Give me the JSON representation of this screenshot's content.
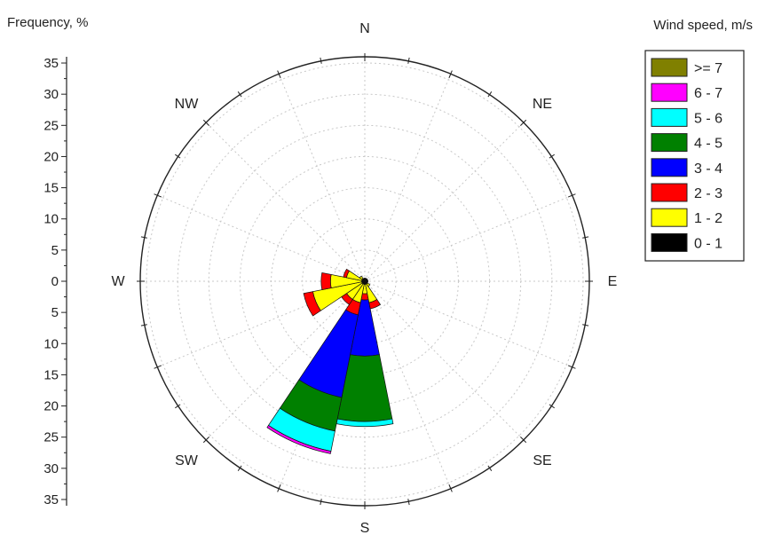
{
  "chart_data": {
    "type": "wind-rose",
    "radial_axis": {
      "label": "Frequency, %",
      "ticks": [
        "35",
        "30",
        "25",
        "20",
        "15",
        "10",
        "5",
        "0",
        "5",
        "10",
        "15",
        "20",
        "25",
        "30",
        "35"
      ],
      "max": 36,
      "rings": [
        5,
        10,
        15,
        20,
        25,
        30,
        35
      ],
      "grid": true
    },
    "directions": [
      "N",
      "NE",
      "E",
      "SE",
      "S",
      "SW",
      "W",
      "NW"
    ],
    "legend": {
      "title": "Wind speed, m/s",
      "placement": "top-right",
      "entries": [
        {
          "label": ">= 7",
          "color": "#808000"
        },
        {
          "label": "6 - 7",
          "color": "#ff00ff"
        },
        {
          "label": "5 - 6",
          "color": "#00ffff"
        },
        {
          "label": "4 - 5",
          "color": "#008000"
        },
        {
          "label": "3 - 4",
          "color": "#0000ff"
        },
        {
          "label": "2 - 3",
          "color": "#ff0000"
        },
        {
          "label": "1 - 2",
          "color": "#ffff00"
        },
        {
          "label": "0 - 1",
          "color": "#000000"
        }
      ]
    },
    "sector_width_deg": 22.5,
    "bin_order": [
      "0 - 1",
      "1 - 2",
      "2 - 3",
      "3 - 4",
      "4 - 5",
      "5 - 6",
      "6 - 7",
      ">= 7"
    ],
    "sectors": [
      {
        "dir_deg": 180,
        "values": [
          0.5,
          1.5,
          1.0,
          9.0,
          10.5,
          0.8,
          0.0,
          0.0
        ]
      },
      {
        "dir_deg": 202.5,
        "values": [
          0.5,
          3.0,
          2.0,
          13.5,
          5.5,
          3.3,
          0.4,
          0.0
        ]
      },
      {
        "dir_deg": 157.5,
        "values": [
          0.5,
          3.0,
          1.0,
          0.0,
          0.0,
          0.0,
          0.0,
          0.0
        ]
      },
      {
        "dir_deg": 225,
        "values": [
          0.5,
          3.0,
          1.0,
          0.0,
          0.0,
          0.0,
          0.0,
          0.0
        ]
      },
      {
        "dir_deg": 247.5,
        "values": [
          0.5,
          8.0,
          1.5,
          0.0,
          0.0,
          0.0,
          0.0,
          0.0
        ]
      },
      {
        "dir_deg": 270,
        "values": [
          0.5,
          5.0,
          1.5,
          0.0,
          0.0,
          0.0,
          0.0,
          0.0
        ]
      },
      {
        "dir_deg": 292.5,
        "values": [
          0.5,
          2.5,
          0.5,
          0.0,
          0.0,
          0.0,
          0.0,
          0.0
        ]
      },
      {
        "dir_deg": 135,
        "values": [
          0.5,
          0.5,
          0.0,
          0.0,
          0.0,
          0.0,
          0.0,
          0.0
        ]
      },
      {
        "dir_deg": 315,
        "values": [
          0.5,
          0.5,
          0.0,
          0.0,
          0.0,
          0.0,
          0.0,
          0.0
        ]
      },
      {
        "dir_deg": 112.5,
        "values": [
          0.5,
          0.0,
          0.0,
          0.0,
          0.0,
          0.0,
          0.0,
          0.0
        ]
      },
      {
        "dir_deg": 0,
        "values": [
          0.5,
          0.0,
          0.0,
          0.0,
          0.0,
          0.0,
          0.0,
          0.0
        ]
      },
      {
        "dir_deg": 22.5,
        "values": [
          0.5,
          0.0,
          0.0,
          0.0,
          0.0,
          0.0,
          0.0,
          0.0
        ]
      },
      {
        "dir_deg": 45,
        "values": [
          0.5,
          0.0,
          0.0,
          0.0,
          0.0,
          0.0,
          0.0,
          0.0
        ]
      },
      {
        "dir_deg": 67.5,
        "values": [
          0.5,
          0.0,
          0.0,
          0.0,
          0.0,
          0.0,
          0.0,
          0.0
        ]
      },
      {
        "dir_deg": 90,
        "values": [
          0.5,
          0.0,
          0.0,
          0.0,
          0.0,
          0.0,
          0.0,
          0.0
        ]
      },
      {
        "dir_deg": 337.5,
        "values": [
          0.5,
          0.0,
          0.0,
          0.0,
          0.0,
          0.0,
          0.0,
          0.0
        ]
      }
    ]
  }
}
